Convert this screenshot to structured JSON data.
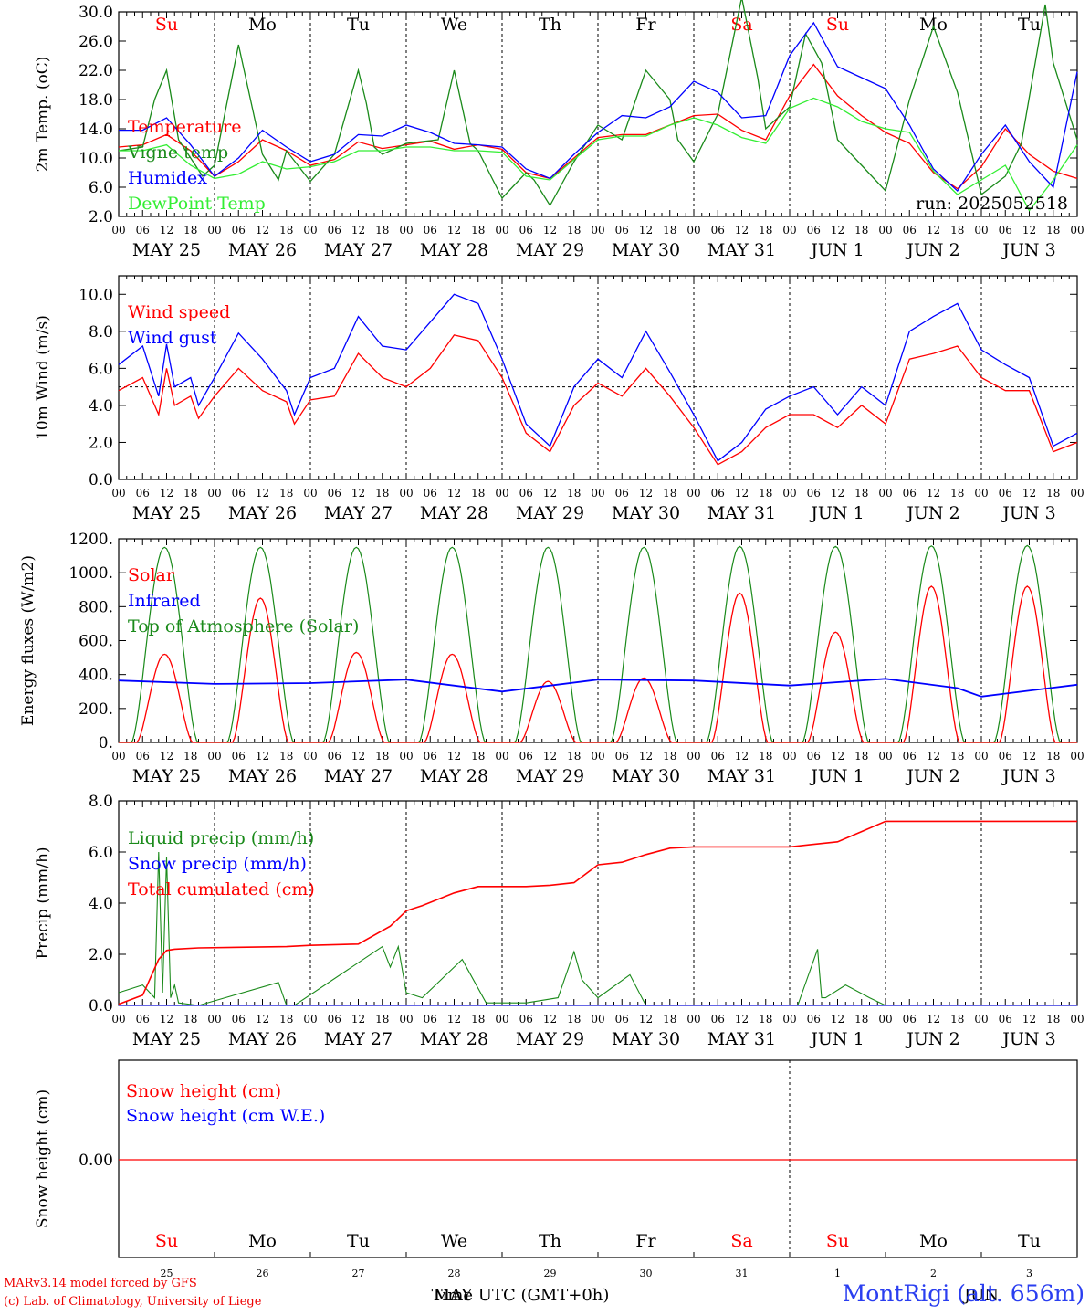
{
  "colors": {
    "red": "#ff0000",
    "green": "#1a8a1a",
    "blue": "#0000ff",
    "lightgreen": "#33ee33",
    "grid": "#000000"
  },
  "day_labels": [
    "Su",
    "Mo",
    "Tu",
    "We",
    "Th",
    "Fr",
    "Sa",
    "Su",
    "Mo",
    "Tu"
  ],
  "weekend_days": [
    0,
    6,
    7
  ],
  "hour_ticks": [
    "00",
    "06",
    "12",
    "18"
  ],
  "date_labels": [
    "MAY 25",
    "MAY 26",
    "MAY 27",
    "MAY 28",
    "MAY 29",
    "MAY 30",
    "MAY 31",
    "JUN  1",
    "JUN  2",
    "JUN  3"
  ],
  "bottom_day_numbers": [
    "25",
    "26",
    "27",
    "28",
    "29",
    "30",
    "31",
    "1",
    "2",
    "3"
  ],
  "run_label": "run: 2025052518",
  "footer": {
    "line1": "MARv3.14 model forced by GFS",
    "line2": "(c) Lab. of Climatology, University of Liege",
    "time_axis": "Time UTC (GMT+0h)",
    "month_overlay": "MAY",
    "month_overlay2": "JUN",
    "station": "MontRigi (alt. 656m)"
  },
  "chart_data": [
    {
      "type": "line",
      "ylabel": "2m Temp. (oC)",
      "ylim": [
        2,
        30
      ],
      "yticks": [
        "2.0",
        "6.0",
        "10.0",
        "14.0",
        "18.0",
        "22.0",
        "26.0",
        "30.0"
      ],
      "legend_placement": "left",
      "x_unit": "hours from May 25 00 UTC",
      "series": [
        {
          "name": "Temperature",
          "color": "red",
          "x": [
            0,
            6,
            12,
            18,
            24,
            30,
            36,
            42,
            48,
            54,
            60,
            66,
            72,
            78,
            84,
            90,
            96,
            102,
            108,
            114,
            120,
            126,
            132,
            138,
            144,
            150,
            156,
            162,
            168,
            174,
            180,
            186,
            192,
            198,
            204,
            210,
            216,
            222,
            228,
            234,
            240
          ],
          "values": [
            11.5,
            11.8,
            13.2,
            11.0,
            7.5,
            9.5,
            12.5,
            11.0,
            9.0,
            9.8,
            12.2,
            11.3,
            11.8,
            12.3,
            11.2,
            11.8,
            11.2,
            8.0,
            7.2,
            10.0,
            12.8,
            13.2,
            13.2,
            14.5,
            15.8,
            16.0,
            13.8,
            12.5,
            18.5,
            22.8,
            18.5,
            15.8,
            13.5,
            12.0,
            8.0,
            5.8,
            8.8,
            14.0,
            10.5,
            8.2,
            7.2
          ]
        },
        {
          "name": "Vigne temp",
          "color": "green",
          "x": [
            0,
            6,
            9,
            12,
            15,
            18,
            21,
            24,
            30,
            36,
            40,
            42,
            48,
            54,
            60,
            62,
            64,
            66,
            72,
            80,
            84,
            88,
            90,
            96,
            102,
            104,
            108,
            114,
            120,
            126,
            132,
            138,
            140,
            144,
            150,
            156,
            160,
            162,
            168,
            172,
            176,
            180,
            186,
            192,
            198,
            204,
            210,
            216,
            222,
            226,
            232,
            234,
            240
          ],
          "values": [
            11.0,
            11.5,
            18.0,
            22.0,
            12.5,
            10.0,
            7.5,
            9.0,
            25.5,
            10.5,
            7.0,
            11.0,
            6.8,
            10.5,
            22.0,
            17.5,
            11.5,
            10.5,
            12.0,
            12.5,
            22.0,
            12.0,
            11.0,
            4.5,
            8.0,
            7.0,
            3.5,
            9.5,
            14.5,
            12.5,
            22.0,
            18.0,
            12.5,
            9.5,
            16.0,
            32.0,
            21.0,
            14.0,
            17.0,
            27.0,
            23.0,
            12.5,
            9.0,
            5.5,
            18.0,
            28.0,
            19.0,
            5.0,
            7.5,
            12.0,
            31.0,
            23.0,
            12.5
          ]
        },
        {
          "name": "Humidex",
          "color": "blue",
          "x": [
            0,
            6,
            12,
            18,
            24,
            30,
            36,
            42,
            48,
            54,
            60,
            66,
            72,
            78,
            84,
            90,
            96,
            102,
            108,
            114,
            120,
            126,
            132,
            138,
            144,
            150,
            156,
            162,
            168,
            174,
            180,
            186,
            192,
            198,
            204,
            210,
            216,
            222,
            228,
            234,
            240
          ],
          "values": [
            13.8,
            13.8,
            15.5,
            11.8,
            7.5,
            10.0,
            13.8,
            11.5,
            9.5,
            10.5,
            13.2,
            13.0,
            14.5,
            13.5,
            12.0,
            11.8,
            11.5,
            8.5,
            7.2,
            10.5,
            13.5,
            15.8,
            15.5,
            17.0,
            20.5,
            19.0,
            15.5,
            15.8,
            24.0,
            28.5,
            22.5,
            21.0,
            19.5,
            14.5,
            8.5,
            5.5,
            10.5,
            14.5,
            9.5,
            6.0,
            21.8
          ]
        },
        {
          "name": "DewPoint Temp",
          "color": "lightgreen",
          "x": [
            0,
            6,
            12,
            18,
            24,
            30,
            36,
            42,
            48,
            54,
            60,
            66,
            72,
            78,
            84,
            90,
            96,
            102,
            108,
            114,
            120,
            126,
            132,
            138,
            144,
            150,
            156,
            162,
            168,
            174,
            180,
            186,
            192,
            198,
            204,
            210,
            216,
            222,
            228,
            234,
            240
          ],
          "values": [
            11.0,
            11.0,
            11.8,
            9.0,
            7.2,
            7.8,
            9.5,
            8.5,
            8.8,
            9.5,
            11.0,
            11.0,
            11.5,
            11.5,
            11.0,
            11.0,
            10.8,
            7.5,
            7.0,
            9.8,
            12.5,
            13.0,
            13.0,
            14.5,
            15.5,
            14.5,
            12.8,
            12.0,
            16.8,
            18.2,
            17.0,
            15.0,
            14.0,
            13.5,
            8.2,
            5.0,
            7.0,
            9.0,
            2.8,
            7.0,
            11.8
          ]
        }
      ]
    },
    {
      "type": "line",
      "ylabel": "10m Wind (m/s)",
      "ylim": [
        0,
        11
      ],
      "yticks": [
        "0.0",
        "2.0",
        "4.0",
        "6.0",
        "8.0",
        "10.0"
      ],
      "reference_line": 5,
      "x_unit": "hours from May 25 00 UTC",
      "series": [
        {
          "name": "Wind speed",
          "color": "red",
          "x": [
            0,
            6,
            10,
            12,
            14,
            18,
            20,
            24,
            30,
            36,
            42,
            44,
            48,
            54,
            60,
            66,
            72,
            78,
            84,
            90,
            96,
            102,
            108,
            114,
            120,
            126,
            132,
            138,
            144,
            150,
            156,
            162,
            168,
            174,
            180,
            186,
            192,
            198,
            204,
            210,
            216,
            222,
            228,
            234,
            240
          ],
          "values": [
            4.8,
            5.5,
            3.5,
            6.0,
            4.0,
            4.5,
            3.3,
            4.5,
            6.0,
            4.8,
            4.2,
            3.0,
            4.3,
            4.5,
            6.8,
            5.5,
            5.0,
            6.0,
            7.8,
            7.5,
            5.5,
            2.5,
            1.5,
            4.0,
            5.2,
            4.5,
            6.0,
            4.5,
            2.8,
            0.8,
            1.5,
            2.8,
            3.5,
            3.5,
            2.8,
            4.0,
            3.0,
            6.5,
            6.8,
            7.2,
            5.5,
            4.8,
            4.8,
            1.5,
            2.0
          ]
        },
        {
          "name": "Wind gust",
          "color": "blue",
          "x": [
            0,
            6,
            10,
            12,
            14,
            18,
            20,
            24,
            30,
            36,
            42,
            44,
            48,
            54,
            60,
            66,
            72,
            78,
            84,
            90,
            96,
            102,
            108,
            114,
            120,
            126,
            132,
            138,
            144,
            150,
            156,
            162,
            168,
            174,
            180,
            186,
            192,
            198,
            204,
            210,
            216,
            222,
            228,
            234,
            240
          ],
          "values": [
            6.2,
            7.2,
            4.5,
            7.3,
            5.0,
            5.5,
            4.0,
            5.5,
            7.9,
            6.5,
            4.8,
            3.5,
            5.5,
            6.0,
            8.8,
            7.2,
            7.0,
            8.5,
            10.0,
            9.5,
            6.5,
            3.0,
            1.8,
            5.0,
            6.5,
            5.5,
            8.0,
            5.8,
            3.5,
            1.0,
            2.0,
            3.8,
            4.5,
            5.0,
            3.5,
            5.0,
            4.0,
            8.0,
            8.8,
            9.5,
            7.0,
            6.2,
            5.5,
            1.8,
            2.5
          ]
        }
      ]
    },
    {
      "type": "line",
      "ylabel": "Energy fluxes (W/m2)",
      "ylim": [
        0,
        1200
      ],
      "yticks": [
        "0.",
        "200.",
        "400.",
        "600.",
        "800.",
        "1000.",
        "1200."
      ],
      "x_unit": "hours from May 25 00 UTC",
      "series": [
        {
          "name": "Solar",
          "color": "red",
          "daily_peak": [
            520,
            850,
            530,
            520,
            360,
            380,
            880,
            650,
            920,
            920
          ]
        },
        {
          "name": "Infrared",
          "color": "blue",
          "x": [
            0,
            24,
            48,
            72,
            96,
            120,
            144,
            168,
            192,
            210,
            216,
            240
          ],
          "values": [
            365,
            345,
            350,
            370,
            300,
            370,
            365,
            335,
            375,
            320,
            270,
            340
          ]
        },
        {
          "name": "Top of Atmosphere (Solar)",
          "color": "green",
          "daily_peak": [
            1150,
            1150,
            1150,
            1150,
            1150,
            1150,
            1155,
            1155,
            1158,
            1160
          ]
        }
      ]
    },
    {
      "type": "line",
      "ylabel": "Precip (mm/h)",
      "ylim": [
        0,
        8
      ],
      "yticks": [
        "0.0",
        "2.0",
        "4.0",
        "6.0",
        "8.0"
      ],
      "x_unit": "hours from May 25 00 UTC",
      "series": [
        {
          "name": "Liquid precip (mm/h)",
          "color": "green",
          "x": [
            0,
            6,
            9,
            10,
            11,
            12,
            13,
            14,
            15,
            20,
            40,
            42,
            44,
            66,
            68,
            70,
            72,
            76,
            82,
            86,
            92,
            102,
            110,
            114,
            116,
            120,
            128,
            132,
            134,
            136,
            150,
            170,
            175,
            176,
            177,
            182,
            188,
            192,
            240
          ],
          "values": [
            0.5,
            0.8,
            0.3,
            6.0,
            0.5,
            5.8,
            0.3,
            0.8,
            0.1,
            0.0,
            0.9,
            0.0,
            0.0,
            2.3,
            1.5,
            2.3,
            0.5,
            0.3,
            1.2,
            1.8,
            0.1,
            0.1,
            0.3,
            2.1,
            1.0,
            0.3,
            1.2,
            0.0,
            0.0,
            0.0,
            0.0,
            0.0,
            2.2,
            0.3,
            0.3,
            0.8,
            0.3,
            0.0,
            0.0
          ]
        },
        {
          "name": "Snow precip (mm/h)",
          "color": "blue",
          "x": [
            0,
            240
          ],
          "values": [
            0,
            0
          ]
        },
        {
          "name": "Total cumulated (cm)",
          "color": "red",
          "x": [
            0,
            6,
            10,
            12,
            14,
            20,
            42,
            48,
            60,
            68,
            72,
            76,
            84,
            90,
            102,
            108,
            114,
            120,
            126,
            132,
            138,
            144,
            156,
            168,
            174,
            180,
            186,
            192,
            240
          ],
          "values": [
            0.05,
            0.4,
            1.8,
            2.15,
            2.2,
            2.25,
            2.3,
            2.35,
            2.4,
            3.1,
            3.7,
            3.9,
            4.4,
            4.65,
            4.65,
            4.7,
            4.8,
            5.5,
            5.6,
            5.9,
            6.15,
            6.2,
            6.2,
            6.2,
            6.3,
            6.4,
            6.8,
            7.2,
            7.2
          ]
        }
      ]
    },
    {
      "type": "line",
      "ylabel": "Snow height (cm)",
      "yticks": [
        "0.00"
      ],
      "x_unit": "hours from May 25 00 UTC",
      "series": [
        {
          "name": "Snow height (cm)",
          "color": "red",
          "x": [
            0,
            240
          ],
          "values": [
            0,
            0
          ]
        },
        {
          "name": "Snow height (cm W.E.)",
          "color": "blue",
          "x": [
            0,
            240
          ],
          "values": [
            0,
            0
          ]
        }
      ]
    }
  ]
}
